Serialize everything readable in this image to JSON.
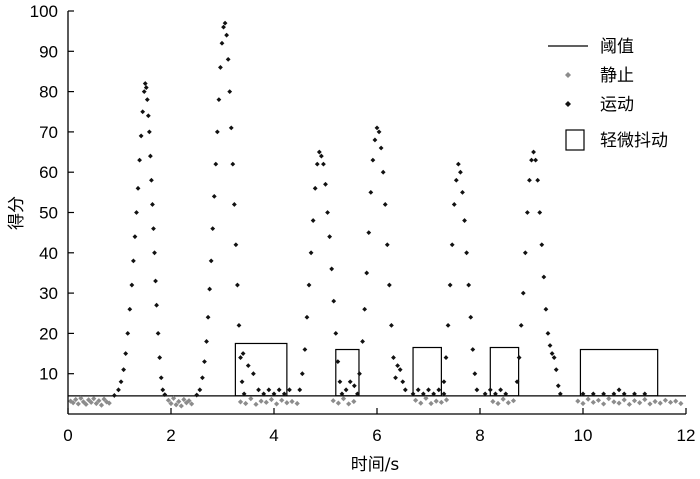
{
  "chart_data": {
    "type": "scatter",
    "xlabel": "时间/s",
    "ylabel": "得分",
    "xlim": [
      0,
      12
    ],
    "ylim": [
      0,
      100
    ],
    "x_ticks": [
      "0",
      "2",
      "4",
      "6",
      "8",
      "10",
      "12"
    ],
    "y_ticks": [
      "10",
      "20",
      "30",
      "40",
      "50",
      "60",
      "70",
      "80",
      "90",
      "100"
    ],
    "legend_position": "top-right",
    "colors": {
      "threshold": "#000000",
      "static": "#8c8c8c",
      "motion": "#111111",
      "tremor_box": "#000000"
    },
    "threshold": {
      "name": "阈值",
      "y": 4.5
    },
    "series": [
      {
        "name": "静止",
        "marker": "diamond",
        "points": [
          [
            0.05,
            3.2
          ],
          [
            0.1,
            2.8
          ],
          [
            0.15,
            3.6
          ],
          [
            0.2,
            2.5
          ],
          [
            0.25,
            3.9
          ],
          [
            0.3,
            3.0
          ],
          [
            0.35,
            2.4
          ],
          [
            0.4,
            3.5
          ],
          [
            0.45,
            2.9
          ],
          [
            0.5,
            3.8
          ],
          [
            0.55,
            2.6
          ],
          [
            0.6,
            3.3
          ],
          [
            0.65,
            2.2
          ],
          [
            0.7,
            3.7
          ],
          [
            0.75,
            3.0
          ],
          [
            0.8,
            2.7
          ],
          [
            1.95,
            3.4
          ],
          [
            2.0,
            2.6
          ],
          [
            2.05,
            3.9
          ],
          [
            2.1,
            2.3
          ],
          [
            2.15,
            3.1
          ],
          [
            2.2,
            2.0
          ],
          [
            2.25,
            3.6
          ],
          [
            2.3,
            2.8
          ],
          [
            2.35,
            3.3
          ],
          [
            2.4,
            2.5
          ],
          [
            3.35,
            3.0
          ],
          [
            3.45,
            2.6
          ],
          [
            3.55,
            3.8
          ],
          [
            3.65,
            2.4
          ],
          [
            3.75,
            3.2
          ],
          [
            3.85,
            2.9
          ],
          [
            3.95,
            3.6
          ],
          [
            4.05,
            2.5
          ],
          [
            4.15,
            3.4
          ],
          [
            4.25,
            2.8
          ],
          [
            4.35,
            3.1
          ],
          [
            4.45,
            2.6
          ],
          [
            5.15,
            3.3
          ],
          [
            5.25,
            2.7
          ],
          [
            5.35,
            3.8
          ],
          [
            5.45,
            2.5
          ],
          [
            5.55,
            3.1
          ],
          [
            6.75,
            3.4
          ],
          [
            6.85,
            2.7
          ],
          [
            6.95,
            3.9
          ],
          [
            7.05,
            2.6
          ],
          [
            7.15,
            3.2
          ],
          [
            7.25,
            2.9
          ],
          [
            7.35,
            3.5
          ],
          [
            8.25,
            3.1
          ],
          [
            8.35,
            2.6
          ],
          [
            8.45,
            3.7
          ],
          [
            8.55,
            2.8
          ],
          [
            8.65,
            3.3
          ],
          [
            9.9,
            3.2
          ],
          [
            10.0,
            2.6
          ],
          [
            10.1,
            3.7
          ],
          [
            10.2,
            2.9
          ],
          [
            10.3,
            3.4
          ],
          [
            10.4,
            2.5
          ],
          [
            10.5,
            3.8
          ],
          [
            10.6,
            3.0
          ],
          [
            10.7,
            2.7
          ],
          [
            10.8,
            3.5
          ],
          [
            10.9,
            2.4
          ],
          [
            11.0,
            3.3
          ],
          [
            11.1,
            2.8
          ],
          [
            11.2,
            3.6
          ],
          [
            11.3,
            2.5
          ],
          [
            11.4,
            3.1
          ],
          [
            11.5,
            2.7
          ],
          [
            11.6,
            3.4
          ],
          [
            11.7,
            2.9
          ],
          [
            11.8,
            3.2
          ],
          [
            11.9,
            2.6
          ]
        ]
      },
      {
        "name": "运动",
        "marker": "diamond",
        "points": [
          [
            0.9,
            4.6
          ],
          [
            0.98,
            6
          ],
          [
            1.03,
            8
          ],
          [
            1.08,
            11
          ],
          [
            1.12,
            15
          ],
          [
            1.16,
            20
          ],
          [
            1.2,
            26
          ],
          [
            1.24,
            32
          ],
          [
            1.27,
            38
          ],
          [
            1.3,
            44
          ],
          [
            1.33,
            50
          ],
          [
            1.36,
            56
          ],
          [
            1.39,
            63
          ],
          [
            1.42,
            69
          ],
          [
            1.45,
            75
          ],
          [
            1.48,
            80
          ],
          [
            1.5,
            82
          ],
          [
            1.52,
            81
          ],
          [
            1.54,
            78
          ],
          [
            1.56,
            74
          ],
          [
            1.58,
            70
          ],
          [
            1.6,
            64
          ],
          [
            1.62,
            58
          ],
          [
            1.64,
            52
          ],
          [
            1.66,
            46
          ],
          [
            1.68,
            40
          ],
          [
            1.7,
            33
          ],
          [
            1.72,
            27
          ],
          [
            1.75,
            20
          ],
          [
            1.78,
            14
          ],
          [
            1.81,
            9
          ],
          [
            1.84,
            6
          ],
          [
            1.88,
            4.8
          ],
          [
            2.5,
            4.7
          ],
          [
            2.56,
            6
          ],
          [
            2.61,
            9
          ],
          [
            2.65,
            13
          ],
          [
            2.69,
            18
          ],
          [
            2.72,
            24
          ],
          [
            2.75,
            31
          ],
          [
            2.78,
            38
          ],
          [
            2.81,
            46
          ],
          [
            2.84,
            54
          ],
          [
            2.87,
            62
          ],
          [
            2.9,
            70
          ],
          [
            2.93,
            78
          ],
          [
            2.96,
            86
          ],
          [
            2.99,
            92
          ],
          [
            3.02,
            96
          ],
          [
            3.05,
            97
          ],
          [
            3.08,
            94
          ],
          [
            3.11,
            88
          ],
          [
            3.14,
            80
          ],
          [
            3.17,
            71
          ],
          [
            3.2,
            62
          ],
          [
            3.23,
            52
          ],
          [
            3.26,
            42
          ],
          [
            3.29,
            32
          ],
          [
            3.32,
            22
          ],
          [
            3.35,
            14
          ],
          [
            3.38,
            8
          ],
          [
            3.42,
            5
          ],
          [
            3.4,
            15
          ],
          [
            3.5,
            12
          ],
          [
            3.6,
            10
          ],
          [
            3.7,
            6
          ],
          [
            3.8,
            5
          ],
          [
            3.9,
            6
          ],
          [
            4.0,
            5
          ],
          [
            4.1,
            6
          ],
          [
            4.2,
            5
          ],
          [
            4.3,
            6
          ],
          [
            4.5,
            6
          ],
          [
            4.55,
            10
          ],
          [
            4.6,
            16
          ],
          [
            4.64,
            24
          ],
          [
            4.68,
            32
          ],
          [
            4.72,
            40
          ],
          [
            4.76,
            48
          ],
          [
            4.8,
            56
          ],
          [
            4.84,
            62
          ],
          [
            4.88,
            65
          ],
          [
            4.92,
            64
          ],
          [
            4.96,
            62
          ],
          [
            5.0,
            57
          ],
          [
            5.04,
            50
          ],
          [
            5.08,
            44
          ],
          [
            5.12,
            36
          ],
          [
            5.16,
            28
          ],
          [
            5.2,
            20
          ],
          [
            5.24,
            13
          ],
          [
            5.28,
            8
          ],
          [
            5.32,
            5
          ],
          [
            5.4,
            6
          ],
          [
            5.48,
            8
          ],
          [
            5.56,
            7
          ],
          [
            5.62,
            5
          ],
          [
            5.66,
            10
          ],
          [
            5.72,
            18
          ],
          [
            5.76,
            26
          ],
          [
            5.8,
            35
          ],
          [
            5.84,
            45
          ],
          [
            5.88,
            55
          ],
          [
            5.92,
            63
          ],
          [
            5.96,
            68
          ],
          [
            6.0,
            71
          ],
          [
            6.04,
            70
          ],
          [
            6.08,
            66
          ],
          [
            6.12,
            60
          ],
          [
            6.16,
            52
          ],
          [
            6.2,
            42
          ],
          [
            6.24,
            32
          ],
          [
            6.28,
            22
          ],
          [
            6.32,
            14
          ],
          [
            6.36,
            9
          ],
          [
            6.4,
            12
          ],
          [
            6.45,
            11
          ],
          [
            6.5,
            8
          ],
          [
            6.55,
            6
          ],
          [
            6.7,
            5
          ],
          [
            6.8,
            6
          ],
          [
            6.9,
            5
          ],
          [
            7.0,
            6
          ],
          [
            7.1,
            5
          ],
          [
            7.2,
            6
          ],
          [
            7.3,
            5
          ],
          [
            7.3,
            8
          ],
          [
            7.34,
            14
          ],
          [
            7.38,
            22
          ],
          [
            7.42,
            32
          ],
          [
            7.46,
            42
          ],
          [
            7.5,
            52
          ],
          [
            7.54,
            58
          ],
          [
            7.58,
            62
          ],
          [
            7.62,
            60
          ],
          [
            7.66,
            55
          ],
          [
            7.7,
            48
          ],
          [
            7.74,
            40
          ],
          [
            7.78,
            32
          ],
          [
            7.82,
            24
          ],
          [
            7.86,
            16
          ],
          [
            7.9,
            10
          ],
          [
            7.94,
            6
          ],
          [
            8.1,
            5
          ],
          [
            8.2,
            6
          ],
          [
            8.3,
            5
          ],
          [
            8.4,
            6
          ],
          [
            8.5,
            5
          ],
          [
            8.72,
            8
          ],
          [
            8.76,
            14
          ],
          [
            8.8,
            22
          ],
          [
            8.84,
            30
          ],
          [
            8.88,
            40
          ],
          [
            8.92,
            50
          ],
          [
            8.96,
            58
          ],
          [
            9.0,
            63
          ],
          [
            9.04,
            65
          ],
          [
            9.08,
            63
          ],
          [
            9.12,
            58
          ],
          [
            9.16,
            50
          ],
          [
            9.2,
            42
          ],
          [
            9.24,
            34
          ],
          [
            9.28,
            26
          ],
          [
            9.32,
            20
          ],
          [
            9.36,
            17
          ],
          [
            9.4,
            15
          ],
          [
            9.44,
            14
          ],
          [
            9.48,
            11
          ],
          [
            9.52,
            7
          ],
          [
            9.56,
            5
          ],
          [
            10.0,
            5
          ],
          [
            10.2,
            5
          ],
          [
            10.4,
            5
          ],
          [
            10.6,
            5
          ],
          [
            10.7,
            6
          ],
          [
            10.8,
            5
          ],
          [
            11.0,
            5
          ],
          [
            11.2,
            5
          ]
        ]
      }
    ],
    "tremor_boxes": {
      "name": "轻微抖动",
      "ranges": [
        {
          "x": [
            3.25,
            4.25
          ],
          "y": [
            4.5,
            17.5
          ]
        },
        {
          "x": [
            5.2,
            5.65
          ],
          "y": [
            4.5,
            16.0
          ]
        },
        {
          "x": [
            6.7,
            7.25
          ],
          "y": [
            4.5,
            16.5
          ]
        },
        {
          "x": [
            8.2,
            8.75
          ],
          "y": [
            4.5,
            16.5
          ]
        },
        {
          "x": [
            9.95,
            11.45
          ],
          "y": [
            4.5,
            16.0
          ]
        }
      ]
    }
  }
}
